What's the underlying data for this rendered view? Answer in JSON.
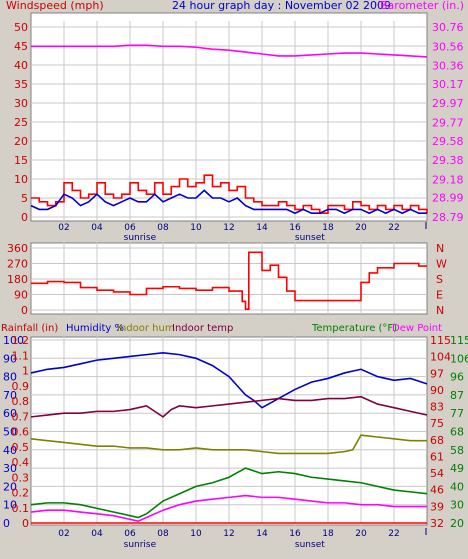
{
  "header": {
    "left_title": "Windspeed (mph)",
    "center_title": "24 hour graph day : November 02 2009",
    "right_title": "Barometer (in.)"
  },
  "colors": {
    "background": "#d4d0c8",
    "plot": "#ffffff",
    "wind": "#ff0000",
    "gust_avg": "#0000cc",
    "barometer": "#ff00ff",
    "direction": "#ff0000",
    "axis_red": "#cc0000",
    "axis_blue": "#0000cc",
    "humidity": "#0000cc",
    "indoor_hum": "#808000",
    "indoor_temp": "#800040",
    "temperature": "#008000",
    "dew_point": "#ff00ff",
    "rainfall": "#ff0000",
    "tick_text": "#000080"
  },
  "x_axis": {
    "ticks": [
      "02",
      "04",
      "06",
      "08",
      "10",
      "12",
      "14",
      "16",
      "18",
      "20",
      "22"
    ],
    "sunrise_label": "sunrise",
    "sunset_label": "sunset",
    "sunrise_hour": 6.6,
    "sunset_hour": 16.9
  },
  "chart_data": [
    {
      "type": "line",
      "panel": "wind-barometer",
      "x_range": [
        0,
        24
      ],
      "left_axis": {
        "label": "Windspeed (mph)",
        "ticks": [
          0,
          5,
          10,
          15,
          20,
          25,
          30,
          35,
          40,
          45,
          50
        ],
        "range": [
          0,
          50
        ]
      },
      "right_axis": {
        "label": "Barometer (in.)",
        "ticks": [
          "28.79",
          "28.99",
          "29.18",
          "29.38",
          "29.58",
          "29.77",
          "29.97",
          "30.17",
          "30.36",
          "30.56",
          "30.76"
        ],
        "range": [
          28.79,
          30.76
        ]
      },
      "series": [
        {
          "name": "Windspeed",
          "axis": "left",
          "x": [
            0,
            0.5,
            1,
            1.5,
            2,
            2.5,
            3,
            3.5,
            4,
            4.5,
            5,
            5.5,
            6,
            6.5,
            7,
            7.5,
            8,
            8.5,
            9,
            9.5,
            10,
            10.5,
            11,
            11.5,
            12,
            12.5,
            13,
            13.5,
            14,
            14.5,
            15,
            15.5,
            16,
            16.5,
            17,
            17.5,
            18,
            18.5,
            19,
            19.5,
            20,
            20.5,
            21,
            21.5,
            22,
            22.5,
            23,
            23.5,
            24
          ],
          "y": [
            5,
            4,
            3,
            4,
            9,
            7,
            5,
            6,
            9,
            6,
            5,
            6,
            9,
            7,
            6,
            9,
            6,
            8,
            10,
            8,
            9,
            11,
            8,
            9,
            7,
            8,
            5,
            4,
            3,
            3,
            4,
            3,
            2,
            3,
            2,
            1,
            3,
            3,
            2,
            4,
            3,
            2,
            3,
            2,
            3,
            2,
            3,
            2,
            1
          ]
        },
        {
          "name": "Avg wind",
          "axis": "left",
          "x": [
            0,
            0.5,
            1,
            1.5,
            2,
            2.5,
            3,
            3.5,
            4,
            4.5,
            5,
            5.5,
            6,
            6.5,
            7,
            7.5,
            8,
            8.5,
            9,
            9.5,
            10,
            10.5,
            11,
            11.5,
            12,
            12.5,
            13,
            13.5,
            14,
            14.5,
            15,
            15.5,
            16,
            16.5,
            17,
            17.5,
            18,
            18.5,
            19,
            19.5,
            20,
            20.5,
            21,
            21.5,
            22,
            22.5,
            23,
            23.5,
            24
          ],
          "y": [
            3,
            2,
            2,
            3,
            6,
            5,
            3,
            4,
            6,
            4,
            3,
            4,
            5,
            4,
            4,
            6,
            4,
            5,
            6,
            5,
            5,
            7,
            5,
            5,
            4,
            5,
            3,
            2,
            2,
            2,
            2,
            2,
            1,
            2,
            1,
            1,
            2,
            2,
            1,
            2,
            2,
            1,
            2,
            1,
            2,
            1,
            2,
            1,
            1
          ]
        },
        {
          "name": "Barometer",
          "axis": "right",
          "x": [
            0,
            1,
            2,
            3,
            4,
            5,
            6,
            7,
            8,
            9,
            10,
            11,
            12,
            13,
            14,
            15,
            16,
            17,
            18,
            19,
            20,
            21,
            22,
            23,
            24
          ],
          "y": [
            30.56,
            30.56,
            30.56,
            30.56,
            30.56,
            30.56,
            30.57,
            30.57,
            30.56,
            30.56,
            30.55,
            30.53,
            30.52,
            30.5,
            30.48,
            30.46,
            30.46,
            30.47,
            30.48,
            30.49,
            30.49,
            30.48,
            30.47,
            30.46,
            30.45
          ]
        }
      ]
    },
    {
      "type": "line",
      "panel": "wind-direction",
      "x_range": [
        0,
        24
      ],
      "left_axis": {
        "ticks": [
          0,
          90,
          180,
          270,
          360
        ],
        "range": [
          0,
          360
        ]
      },
      "right_axis": {
        "ticks": [
          "N",
          "W",
          "S",
          "E",
          "N"
        ]
      },
      "series": [
        {
          "name": "Wind direction",
          "x": [
            0,
            1,
            2,
            3,
            4,
            5,
            6,
            7,
            8,
            9,
            10,
            11,
            12,
            12.8,
            13.0,
            13.2,
            13.6,
            14,
            14.5,
            15,
            15.5,
            16,
            17,
            18,
            19,
            20,
            20.5,
            21,
            22,
            23,
            23.5,
            24
          ],
          "y": [
            155,
            165,
            160,
            130,
            115,
            105,
            90,
            125,
            135,
            125,
            115,
            130,
            110,
            50,
            5,
            335,
            335,
            230,
            260,
            190,
            110,
            55,
            55,
            55,
            55,
            160,
            215,
            245,
            270,
            270,
            255,
            255
          ]
        }
      ]
    },
    {
      "type": "line",
      "panel": "humidity-temperature",
      "x_range": [
        0,
        24
      ],
      "labels": {
        "rainfall": "Rainfall (in)",
        "humidity": "Humidity %",
        "indoor_hum": "Indoor hum",
        "indoor_temp": "Indoor temp",
        "temperature": "Temperature (°F)",
        "dew_point": "Dew Point"
      },
      "axes": {
        "rainfall": [
          "0",
          "0.1",
          "0.2",
          "0.3",
          "0.4",
          "0.5",
          "0.6",
          "0.7",
          "0.8",
          "0.9",
          "1",
          "1.1",
          "1.2"
        ],
        "humidity": [
          "0",
          "10",
          "20",
          "30",
          "40",
          "50",
          "60",
          "70",
          "80",
          "90",
          "100"
        ],
        "temp_inner": [
          "32",
          "39",
          "46",
          "54",
          "61",
          "68",
          "75",
          "83",
          "90",
          "97",
          "104",
          "115"
        ],
        "temp_outer": [
          "20",
          "30",
          "40",
          "49",
          "58",
          "68",
          "77",
          "87",
          "96",
          "106",
          "115"
        ]
      },
      "humidity_range": [
        0,
        100
      ],
      "series": [
        {
          "name": "Humidity",
          "x": [
            0,
            1,
            2,
            3,
            4,
            5,
            6,
            7,
            8,
            9,
            10,
            11,
            12,
            12.5,
            13,
            13.5,
            14,
            15,
            16,
            17,
            18,
            19,
            20,
            21,
            22,
            23,
            24
          ],
          "y": [
            82,
            84,
            85,
            87,
            89,
            90,
            91,
            92,
            93,
            92,
            90,
            86,
            80,
            75,
            70,
            67,
            63,
            68,
            73,
            77,
            79,
            82,
            84,
            80,
            78,
            79,
            76
          ]
        },
        {
          "name": "Indoor temp",
          "x": [
            0,
            1,
            2,
            3,
            4,
            5,
            6,
            7,
            7.5,
            8,
            8.5,
            9,
            10,
            11,
            12,
            13,
            14,
            15,
            16,
            17,
            18,
            19,
            20,
            21,
            22,
            23,
            24
          ],
          "y": [
            58,
            59,
            60,
            60,
            61,
            61,
            62,
            64,
            61,
            58,
            62,
            64,
            63,
            64,
            65,
            66,
            67,
            68,
            67,
            67,
            68,
            68,
            69,
            65,
            63,
            61,
            59
          ]
        },
        {
          "name": "Indoor hum",
          "x": [
            0,
            1,
            2,
            3,
            4,
            5,
            6,
            7,
            8,
            9,
            10,
            11,
            12,
            13,
            14,
            15,
            16,
            17,
            18,
            19,
            19.5,
            20,
            21,
            22,
            23,
            24
          ],
          "y": [
            46,
            45,
            44,
            43,
            42,
            42,
            41,
            41,
            40,
            40,
            41,
            40,
            40,
            40,
            39,
            38,
            38,
            38,
            38,
            39,
            40,
            48,
            47,
            46,
            45,
            45
          ]
        },
        {
          "name": "Temperature",
          "x": [
            0,
            1,
            2,
            3,
            4,
            5,
            6,
            6.5,
            7,
            8,
            9,
            10,
            11,
            12,
            13,
            14,
            15,
            16,
            17,
            18,
            19,
            20,
            21,
            22,
            23,
            24
          ],
          "y": [
            10,
            11,
            11,
            10,
            8,
            6,
            4,
            3,
            5,
            12,
            16,
            20,
            22,
            25,
            30,
            27,
            28,
            27,
            25,
            24,
            23,
            22,
            20,
            18,
            17,
            16
          ]
        },
        {
          "name": "Dew Point",
          "x": [
            0,
            1,
            2,
            3,
            4,
            5,
            6,
            6.5,
            7,
            8,
            9,
            10,
            11,
            12,
            13,
            14,
            15,
            16,
            17,
            18,
            19,
            20,
            21,
            22,
            23,
            24
          ],
          "y": [
            6,
            7,
            7,
            6,
            5,
            4,
            2,
            1,
            3,
            7,
            10,
            12,
            13,
            14,
            15,
            14,
            14,
            13,
            12,
            11,
            11,
            10,
            10,
            9,
            9,
            9
          ]
        },
        {
          "name": "Rainfall",
          "x": [
            0,
            24
          ],
          "y": [
            0,
            0
          ]
        }
      ]
    }
  ]
}
